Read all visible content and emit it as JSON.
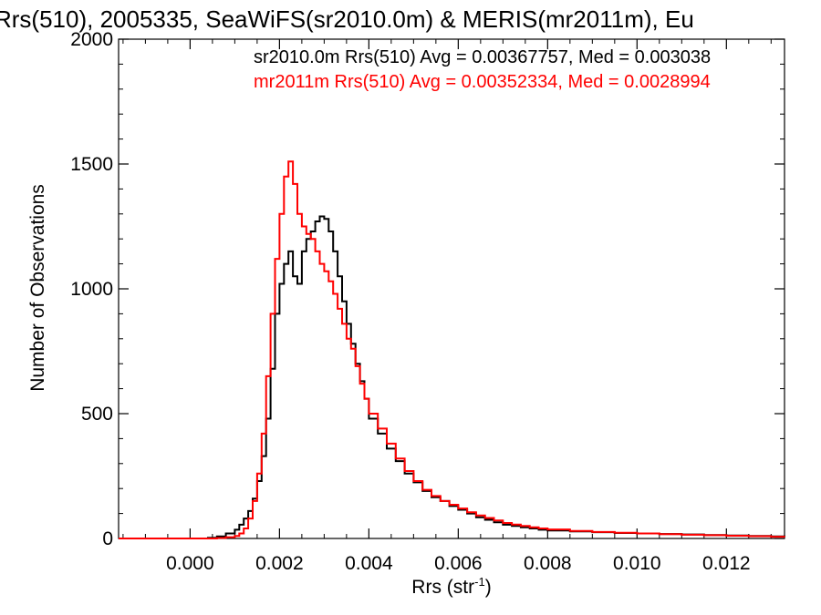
{
  "chart_data": {
    "type": "line",
    "title": "Rrs(510), 2005335, SeaWiFS(sr2010.0m) & MERIS(mr2011m), Eu",
    "xlabel_main": "Rrs (str",
    "xlabel_sup": "-1",
    "xlabel_close": ")",
    "ylabel": "Number of Observations",
    "xlim": [
      -0.0016,
      0.0133
    ],
    "ylim": [
      0,
      2000
    ],
    "x_ticks": [
      0.0,
      0.002,
      0.004,
      0.006,
      0.008,
      0.01,
      0.012
    ],
    "x_tick_labels": [
      "0.000",
      "0.002",
      "0.004",
      "0.006",
      "0.008",
      "0.010",
      "0.012"
    ],
    "y_ticks": [
      0,
      500,
      1000,
      1500,
      2000
    ],
    "y_tick_labels": [
      "0",
      "500",
      "1000",
      "1500",
      "2000"
    ],
    "series": [
      {
        "name": "sr2010.0m Rrs(510) Avg = 0.00367757, Med = 0.003038",
        "color": "#000000",
        "points": [
          [
            -0.0016,
            0
          ],
          [
            0.0,
            0
          ],
          [
            0.0004,
            3
          ],
          [
            0.0006,
            8
          ],
          [
            0.0008,
            20
          ],
          [
            0.001,
            35
          ],
          [
            0.0011,
            55
          ],
          [
            0.0012,
            80
          ],
          [
            0.0013,
            110
          ],
          [
            0.0014,
            160
          ],
          [
            0.0015,
            230
          ],
          [
            0.0016,
            330
          ],
          [
            0.0017,
            480
          ],
          [
            0.0018,
            680
          ],
          [
            0.0019,
            900
          ],
          [
            0.002,
            1020
          ],
          [
            0.0021,
            1100
          ],
          [
            0.0022,
            1150
          ],
          [
            0.0023,
            1050
          ],
          [
            0.0024,
            1020
          ],
          [
            0.0025,
            1150
          ],
          [
            0.0026,
            1200
          ],
          [
            0.0027,
            1230
          ],
          [
            0.0028,
            1270
          ],
          [
            0.0029,
            1290
          ],
          [
            0.003,
            1280
          ],
          [
            0.0031,
            1230
          ],
          [
            0.0032,
            1150
          ],
          [
            0.0033,
            1050
          ],
          [
            0.0034,
            950
          ],
          [
            0.0035,
            860
          ],
          [
            0.0036,
            780
          ],
          [
            0.0037,
            700
          ],
          [
            0.0038,
            630
          ],
          [
            0.0039,
            560
          ],
          [
            0.004,
            480
          ],
          [
            0.0042,
            420
          ],
          [
            0.0044,
            360
          ],
          [
            0.0046,
            310
          ],
          [
            0.0048,
            260
          ],
          [
            0.005,
            225
          ],
          [
            0.0052,
            190
          ],
          [
            0.0054,
            165
          ],
          [
            0.0056,
            150
          ],
          [
            0.0058,
            130
          ],
          [
            0.006,
            115
          ],
          [
            0.0062,
            100
          ],
          [
            0.0064,
            85
          ],
          [
            0.0066,
            75
          ],
          [
            0.0068,
            65
          ],
          [
            0.007,
            55
          ],
          [
            0.0072,
            50
          ],
          [
            0.0074,
            45
          ],
          [
            0.0076,
            40
          ],
          [
            0.0078,
            35
          ],
          [
            0.008,
            32
          ],
          [
            0.0085,
            28
          ],
          [
            0.009,
            25
          ],
          [
            0.0095,
            22
          ],
          [
            0.01,
            20
          ],
          [
            0.0105,
            18
          ],
          [
            0.011,
            16
          ],
          [
            0.0115,
            14
          ],
          [
            0.012,
            12
          ],
          [
            0.0125,
            10
          ],
          [
            0.013,
            8
          ],
          [
            0.0133,
            7
          ]
        ]
      },
      {
        "name": "mr2011m Rrs(510) Avg = 0.00352334, Med = 0.0028994",
        "color": "#ff0000",
        "points": [
          [
            -0.0016,
            0
          ],
          [
            0.0,
            0
          ],
          [
            0.0006,
            2
          ],
          [
            0.0008,
            5
          ],
          [
            0.001,
            10
          ],
          [
            0.0011,
            20
          ],
          [
            0.0012,
            40
          ],
          [
            0.0013,
            80
          ],
          [
            0.0014,
            150
          ],
          [
            0.0015,
            260
          ],
          [
            0.0016,
            420
          ],
          [
            0.0017,
            650
          ],
          [
            0.0018,
            900
          ],
          [
            0.0019,
            1120
          ],
          [
            0.002,
            1300
          ],
          [
            0.0021,
            1450
          ],
          [
            0.0022,
            1510
          ],
          [
            0.0023,
            1420
          ],
          [
            0.0024,
            1300
          ],
          [
            0.0025,
            1250
          ],
          [
            0.0026,
            1220
          ],
          [
            0.0027,
            1200
          ],
          [
            0.0028,
            1150
          ],
          [
            0.0029,
            1100
          ],
          [
            0.003,
            1070
          ],
          [
            0.0031,
            1030
          ],
          [
            0.0032,
            980
          ],
          [
            0.0033,
            920
          ],
          [
            0.0034,
            860
          ],
          [
            0.0035,
            800
          ],
          [
            0.0036,
            760
          ],
          [
            0.0037,
            690
          ],
          [
            0.0038,
            620
          ],
          [
            0.0039,
            560
          ],
          [
            0.004,
            500
          ],
          [
            0.0042,
            440
          ],
          [
            0.0044,
            380
          ],
          [
            0.0046,
            320
          ],
          [
            0.0048,
            270
          ],
          [
            0.005,
            230
          ],
          [
            0.0052,
            195
          ],
          [
            0.0054,
            170
          ],
          [
            0.0056,
            150
          ],
          [
            0.0058,
            135
          ],
          [
            0.006,
            120
          ],
          [
            0.0062,
            105
          ],
          [
            0.0064,
            92
          ],
          [
            0.0066,
            82
          ],
          [
            0.0068,
            72
          ],
          [
            0.007,
            62
          ],
          [
            0.0072,
            56
          ],
          [
            0.0074,
            50
          ],
          [
            0.0076,
            45
          ],
          [
            0.0078,
            40
          ],
          [
            0.008,
            36
          ],
          [
            0.0085,
            30
          ],
          [
            0.009,
            26
          ],
          [
            0.0095,
            23
          ],
          [
            0.01,
            20
          ],
          [
            0.0105,
            17
          ],
          [
            0.011,
            15
          ],
          [
            0.0115,
            13
          ],
          [
            0.012,
            11
          ],
          [
            0.0125,
            9
          ],
          [
            0.013,
            7
          ],
          [
            0.0133,
            6
          ]
        ]
      }
    ],
    "legend_position": "top-right",
    "grid": false
  }
}
